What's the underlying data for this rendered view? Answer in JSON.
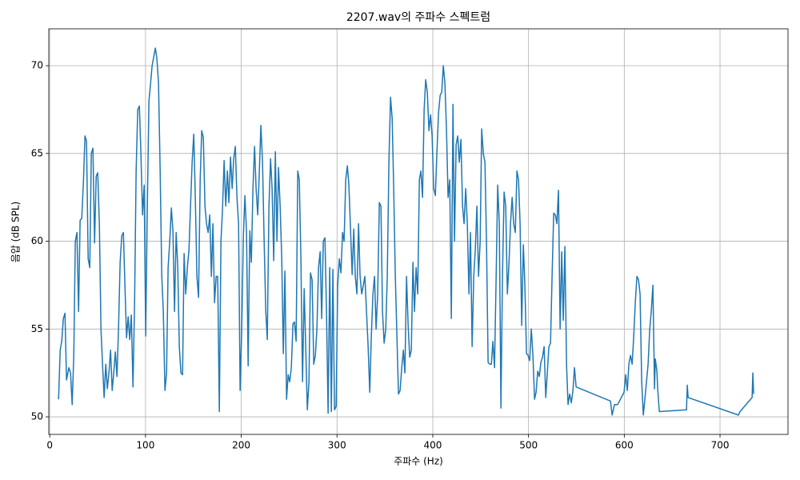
{
  "chart_data": {
    "type": "line",
    "title": "2207.wav의 주파수 스펙트럼",
    "x_label": "주파수 (Hz)",
    "y_label": "음압 (dB SPL)",
    "color": "#1f77b4",
    "grid": true,
    "xlim": [
      -1,
      771
    ],
    "ylim": [
      49,
      72.1
    ],
    "xticks": [
      0,
      100,
      200,
      300,
      400,
      500,
      600,
      700
    ],
    "yticks": [
      50,
      55,
      60,
      65,
      70
    ],
    "x": [
      9.2,
      10.9,
      12.5,
      14.2,
      15.9,
      17.5,
      20.0,
      21.7,
      23.4,
      25.1,
      26.7,
      28.4,
      30.1,
      31.7,
      33.4,
      35.1,
      36.8,
      38.4,
      40.1,
      41.8,
      43.4,
      45.1,
      46.8,
      48.5,
      50.1,
      51.8,
      53.5,
      55.1,
      56.8,
      58.5,
      60.1,
      61.8,
      63.5,
      65.2,
      66.8,
      68.5,
      70.2,
      71.8,
      73.5,
      75.2,
      76.9,
      78.5,
      80.2,
      81.9,
      83.5,
      85.2,
      86.9,
      88.6,
      90.2,
      91.9,
      93.6,
      95.2,
      96.9,
      98.6,
      100.2,
      101.9,
      103.6,
      105.3,
      106.9,
      108.6,
      110.3,
      111.9,
      113.6,
      115.3,
      117.0,
      118.6,
      120.3,
      122.0,
      123.6,
      125.3,
      127.0,
      128.7,
      130.3,
      132.0,
      133.7,
      135.3,
      137.0,
      138.7,
      140.3,
      142.0,
      143.7,
      145.4,
      147.0,
      148.7,
      150.4,
      152.0,
      153.7,
      155.4,
      157.1,
      158.7,
      160.4,
      162.1,
      163.7,
      165.4,
      167.1,
      168.8,
      170.4,
      172.1,
      173.8,
      175.4,
      177.1,
      178.8,
      180.4,
      182.1,
      183.8,
      185.5,
      187.1,
      188.8,
      190.5,
      192.1,
      193.8,
      195.5,
      197.2,
      198.8,
      200.5,
      202.2,
      203.8,
      205.5,
      207.2,
      208.9,
      210.5,
      212.2,
      213.9,
      215.5,
      217.2,
      218.9,
      220.5,
      222.2,
      223.9,
      225.6,
      227.2,
      228.9,
      230.6,
      232.2,
      233.9,
      235.6,
      237.3,
      238.9,
      240.6,
      242.3,
      243.9,
      245.6,
      247.3,
      249.0,
      250.6,
      252.3,
      254.0,
      255.6,
      257.3,
      259.0,
      260.6,
      262.3,
      264.0,
      265.7,
      267.3,
      269.0,
      270.7,
      272.3,
      274.0,
      275.7,
      277.4,
      279.0,
      280.7,
      282.4,
      284.0,
      285.7,
      287.4,
      289.0,
      290.7,
      292.4,
      294.1,
      295.7,
      297.4,
      299.1,
      300.7,
      302.4,
      304.1,
      305.8,
      307.4,
      309.1,
      310.8,
      312.4,
      314.1,
      315.8,
      317.5,
      319.1,
      320.8,
      322.5,
      324.1,
      325.8,
      327.5,
      329.1,
      330.8,
      332.5,
      334.2,
      335.8,
      337.5,
      339.2,
      340.8,
      342.5,
      344.2,
      345.9,
      347.5,
      349.2,
      350.9,
      352.5,
      354.2,
      355.9,
      357.6,
      359.2,
      360.9,
      362.6,
      364.2,
      365.9,
      367.6,
      369.3,
      370.9,
      372.6,
      374.3,
      375.9,
      377.6,
      379.3,
      380.9,
      382.6,
      384.3,
      386.0,
      387.6,
      389.3,
      391.0,
      392.6,
      394.3,
      396.0,
      397.7,
      399.3,
      401.0,
      402.7,
      404.3,
      406.0,
      407.7,
      409.4,
      411.0,
      412.7,
      414.4,
      416.0,
      417.7,
      419.4,
      421.1,
      422.7,
      424.4,
      426.1,
      427.7,
      429.4,
      431.1,
      432.7,
      434.4,
      436.1,
      437.8,
      439.4,
      441.1,
      442.8,
      444.4,
      446.1,
      447.8,
      449.5,
      451.1,
      452.8,
      454.5,
      456.1,
      457.8,
      459.5,
      461.2,
      462.8,
      464.5,
      466.2,
      467.8,
      469.5,
      471.2,
      472.8,
      474.5,
      476.2,
      477.9,
      479.5,
      481.2,
      482.9,
      484.5,
      486.2,
      487.9,
      489.6,
      491.2,
      492.9,
      494.6,
      496.2,
      497.9,
      499.6,
      501.2,
      502.9,
      504.6,
      506.3,
      507.9,
      509.6,
      511.3,
      512.9,
      514.6,
      516.3,
      518.0,
      519.6,
      521.3,
      523.0,
      524.6,
      526.3,
      528.0,
      529.6,
      531.3,
      533.0,
      534.7,
      536.3,
      538.0,
      539.7,
      541.3,
      543.0,
      544.7,
      546.4,
      548.0,
      549.7,
      585.6,
      587.3,
      589.8,
      593.1,
      599.8,
      601.5,
      603.2,
      604.8,
      606.5,
      608.2,
      609.8,
      611.5,
      613.2,
      614.9,
      616.5,
      618.2,
      619.9,
      621.5,
      624.9,
      626.6,
      628.2,
      629.9,
      631.6,
      632.4,
      634.1,
      634.9,
      636.6,
      665.0,
      665.8,
      666.7,
      719.3,
      720.9,
      733.5,
      734.3,
      735.1
    ],
    "values": [
      51.0,
      53.8,
      54.3,
      55.6,
      55.9,
      52.1,
      52.8,
      52.5,
      50.7,
      53.5,
      60.0,
      60.5,
      56.0,
      61.2,
      61.3,
      63.3,
      66.0,
      65.7,
      59.0,
      58.5,
      65.0,
      65.3,
      59.9,
      63.7,
      63.9,
      61.0,
      55.0,
      53.0,
      51.1,
      53.0,
      51.6,
      52.5,
      53.8,
      51.5,
      52.5,
      53.7,
      52.3,
      55.0,
      58.8,
      60.3,
      60.5,
      57.5,
      54.5,
      55.7,
      54.4,
      55.8,
      51.7,
      56.5,
      64.0,
      67.5,
      67.7,
      65.0,
      61.5,
      63.2,
      54.6,
      62.0,
      68.0,
      69.0,
      70.0,
      70.5,
      71.0,
      70.4,
      69.0,
      64.0,
      58.0,
      56.0,
      51.5,
      52.5,
      58.5,
      60.0,
      61.9,
      60.5,
      56.0,
      60.5,
      58.5,
      54.0,
      52.5,
      52.4,
      59.3,
      57.0,
      58.5,
      59.5,
      62.0,
      64.5,
      66.1,
      62.5,
      58.0,
      56.8,
      63.5,
      66.3,
      65.9,
      62.0,
      61.0,
      60.5,
      61.5,
      58.0,
      61.0,
      56.5,
      58.0,
      58.0,
      50.3,
      60.0,
      61.8,
      64.6,
      62.0,
      64.0,
      62.2,
      64.8,
      63.0,
      64.7,
      65.4,
      62.5,
      61.0,
      51.5,
      55.0,
      60.3,
      62.6,
      60.5,
      52.9,
      60.6,
      58.8,
      63.0,
      65.4,
      63.0,
      61.5,
      64.0,
      66.6,
      64.5,
      60.0,
      56.0,
      54.4,
      62.0,
      64.7,
      63.0,
      58.9,
      65.1,
      60.0,
      64.2,
      62.0,
      59.0,
      53.6,
      58.3,
      51.0,
      52.4,
      52.0,
      52.8,
      55.3,
      55.4,
      54.3,
      64.0,
      63.5,
      59.0,
      52.0,
      57.3,
      54.0,
      50.4,
      52.0,
      58.2,
      57.8,
      53.0,
      53.5,
      55.0,
      58.5,
      59.4,
      55.6,
      60.0,
      60.2,
      56.0,
      50.2,
      58.5,
      50.3,
      58.4,
      50.4,
      50.6,
      57.5,
      59.0,
      58.2,
      60.5,
      60.0,
      63.5,
      64.3,
      63.2,
      60.7,
      58.1,
      60.7,
      58.0,
      57.0,
      61.0,
      58.0,
      57.0,
      57.5,
      58.0,
      56.0,
      54.0,
      51.4,
      54.5,
      57.0,
      58.0,
      55.0,
      57.0,
      62.2,
      62.0,
      56.0,
      54.2,
      55.0,
      58.0,
      64.5,
      68.2,
      67.0,
      63.0,
      58.0,
      54.5,
      51.3,
      51.5,
      52.8,
      53.8,
      52.5,
      58.0,
      55.2,
      53.4,
      53.8,
      58.8,
      56.0,
      58.5,
      57.0,
      63.5,
      64.0,
      62.5,
      67.5,
      69.2,
      68.5,
      66.3,
      67.2,
      66.0,
      63.0,
      62.6,
      65.0,
      67.3,
      68.3,
      68.5,
      70.0,
      69.0,
      66.2,
      62.5,
      63.5,
      55.6,
      67.8,
      60.0,
      65.5,
      66.0,
      64.5,
      65.8,
      62.0,
      61.0,
      63.0,
      61.0,
      57.0,
      60.5,
      54.0,
      58.0,
      59.5,
      62.0,
      58.0,
      60.0,
      66.4,
      65.0,
      64.5,
      60.0,
      53.1,
      53.0,
      53.0,
      54.3,
      52.8,
      58.0,
      63.2,
      61.0,
      50.5,
      58.0,
      62.8,
      62.0,
      57.0,
      58.6,
      61.0,
      62.5,
      61.0,
      60.5,
      64.0,
      63.5,
      61.0,
      55.2,
      59.8,
      57.5,
      53.6,
      53.5,
      53.2,
      55.0,
      53.5,
      51.0,
      51.4,
      52.6,
      52.3,
      53.1,
      53.4,
      54.0,
      51.1,
      52.5,
      54.0,
      54.2,
      58.0,
      61.6,
      61.5,
      61.0,
      62.9,
      55.0,
      59.4,
      55.5,
      59.7,
      53.0,
      50.7,
      51.3,
      50.8,
      51.5,
      52.8,
      51.7,
      50.9,
      50.1,
      50.7,
      50.7,
      51.4,
      52.4,
      51.5,
      53.0,
      53.5,
      53.0,
      54.5,
      56.5,
      58.0,
      57.8,
      57.0,
      52.0,
      50.1,
      51.0,
      53.0,
      55.0,
      56.0,
      57.5,
      51.6,
      53.3,
      52.6,
      51.6,
      50.3,
      50.4,
      51.8,
      51.1,
      50.1,
      50.3,
      51.1,
      52.5,
      51.3
    ]
  }
}
